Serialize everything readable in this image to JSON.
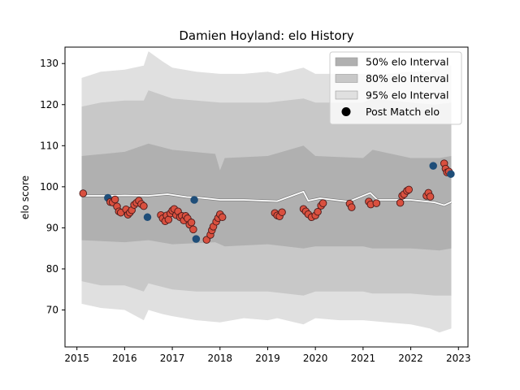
{
  "chart_data": {
    "type": "scatter",
    "title": "Damien Hoyland: elo History",
    "xlabel": "",
    "ylabel": "elo score",
    "xlim": [
      2014.75,
      2023.2
    ],
    "ylim": [
      61,
      134
    ],
    "x_ticks": [
      2015,
      2016,
      2017,
      2018,
      2019,
      2020,
      2021,
      2022,
      2023
    ],
    "y_ticks": [
      70,
      80,
      90,
      100,
      110,
      120,
      130
    ],
    "grid": false,
    "legend": {
      "placement": "top-right",
      "entries": [
        {
          "label": "50% elo Interval",
          "color": "#b0b0b0"
        },
        {
          "label": "80% elo Interval",
          "color": "#c8c8c8"
        },
        {
          "label": "95% elo Interval",
          "color": "#e0e0e0"
        },
        {
          "label": "Post Match elo",
          "color": "#000000"
        }
      ]
    },
    "colors": {
      "band50": "#b0b0b0",
      "band80": "#c8c8c8",
      "band95": "#e0e0e0",
      "mean_line": "#ffffff",
      "mean_line_shadow": "#808080",
      "win_marker": "#d9503f",
      "loss_marker": "#1f4e79",
      "marker_edge": "#4a1a1a"
    },
    "mean_line": [
      {
        "x": 2015.1,
        "y": 97.8
      },
      {
        "x": 2015.7,
        "y": 97.8
      },
      {
        "x": 2016.0,
        "y": 97.9
      },
      {
        "x": 2016.5,
        "y": 97.8
      },
      {
        "x": 2016.9,
        "y": 98.2
      },
      {
        "x": 2017.3,
        "y": 97.5
      },
      {
        "x": 2017.6,
        "y": 97.3
      },
      {
        "x": 2018.0,
        "y": 96.8
      },
      {
        "x": 2018.5,
        "y": 96.8
      },
      {
        "x": 2019.2,
        "y": 96.5
      },
      {
        "x": 2019.75,
        "y": 98.8
      },
      {
        "x": 2019.85,
        "y": 96.6
      },
      {
        "x": 2020.1,
        "y": 97.2
      },
      {
        "x": 2020.7,
        "y": 96.4
      },
      {
        "x": 2021.15,
        "y": 98.5
      },
      {
        "x": 2021.3,
        "y": 96.8
      },
      {
        "x": 2022.0,
        "y": 96.8
      },
      {
        "x": 2022.5,
        "y": 96.2
      },
      {
        "x": 2022.7,
        "y": 95.5
      },
      {
        "x": 2022.85,
        "y": 96.3
      }
    ],
    "band_95": {
      "x": [
        2015.1,
        2015.5,
        2016.0,
        2016.4,
        2016.5,
        2016.8,
        2017.0,
        2017.5,
        2018.0,
        2018.5,
        2019.0,
        2019.2,
        2019.75,
        2020.0,
        2020.5,
        2021.0,
        2021.5,
        2022.0,
        2022.4,
        2022.6,
        2022.85
      ],
      "upper": [
        126.5,
        128.0,
        128.5,
        129.5,
        133.0,
        130.5,
        129.0,
        128.0,
        127.5,
        127.5,
        128.0,
        127.5,
        129.0,
        127.5,
        127.5,
        127.5,
        127.5,
        128.0,
        128.0,
        130.0,
        129.5
      ],
      "lower": [
        71.5,
        70.5,
        70.0,
        67.5,
        70.0,
        69.0,
        68.5,
        67.5,
        67.0,
        68.0,
        67.5,
        68.0,
        66.5,
        68.0,
        67.5,
        67.5,
        67.0,
        66.5,
        65.5,
        64.5,
        65.5
      ]
    },
    "band_80": {
      "x": [
        2015.1,
        2015.5,
        2016.0,
        2016.4,
        2016.5,
        2017.0,
        2017.5,
        2018.0,
        2019.0,
        2019.75,
        2020.0,
        2021.0,
        2021.2,
        2022.0,
        2022.5,
        2022.85
      ],
      "upper": [
        119.5,
        120.5,
        121.0,
        121.0,
        123.5,
        121.5,
        121.0,
        120.5,
        120.5,
        121.5,
        120.5,
        120.5,
        121.5,
        120.5,
        120.0,
        120.5
      ],
      "lower": [
        77.0,
        76.0,
        76.0,
        74.5,
        76.5,
        75.0,
        74.5,
        74.5,
        74.5,
        73.5,
        74.5,
        74.5,
        74.0,
        74.0,
        73.5,
        73.5
      ]
    },
    "band_50": {
      "x": [
        2015.1,
        2016.0,
        2016.5,
        2017.0,
        2017.9,
        2018.0,
        2018.1,
        2019.0,
        2019.75,
        2020.0,
        2021.0,
        2021.2,
        2022.0,
        2022.6,
        2022.85
      ],
      "upper": [
        107.5,
        108.5,
        110.5,
        109.0,
        108.0,
        104.0,
        107.0,
        107.5,
        110.0,
        107.5,
        107.0,
        109.0,
        107.0,
        107.0,
        107.5
      ],
      "lower": [
        87.0,
        86.5,
        87.0,
        86.0,
        86.5,
        86.0,
        85.5,
        86.0,
        85.0,
        85.5,
        85.5,
        85.0,
        85.0,
        84.5,
        85.0
      ]
    },
    "series": [
      {
        "name": "Post Match elo",
        "points": [
          {
            "x": 2015.13,
            "y": 98.4,
            "result": "win"
          },
          {
            "x": 2015.65,
            "y": 97.3,
            "result": "loss"
          },
          {
            "x": 2015.7,
            "y": 96.3,
            "result": "win"
          },
          {
            "x": 2015.75,
            "y": 96.2,
            "result": "win"
          },
          {
            "x": 2015.8,
            "y": 96.9,
            "result": "win"
          },
          {
            "x": 2015.84,
            "y": 95.2,
            "result": "win"
          },
          {
            "x": 2015.88,
            "y": 94.0,
            "result": "win"
          },
          {
            "x": 2015.92,
            "y": 93.7,
            "result": "win"
          },
          {
            "x": 2016.03,
            "y": 94.5,
            "result": "win"
          },
          {
            "x": 2016.07,
            "y": 93.2,
            "result": "win"
          },
          {
            "x": 2016.11,
            "y": 93.7,
            "result": "win"
          },
          {
            "x": 2016.15,
            "y": 94.3,
            "result": "win"
          },
          {
            "x": 2016.2,
            "y": 95.6,
            "result": "win"
          },
          {
            "x": 2016.25,
            "y": 96.1,
            "result": "win"
          },
          {
            "x": 2016.3,
            "y": 96.6,
            "result": "win"
          },
          {
            "x": 2016.35,
            "y": 95.8,
            "result": "win"
          },
          {
            "x": 2016.4,
            "y": 95.3,
            "result": "win"
          },
          {
            "x": 2016.48,
            "y": 92.6,
            "result": "loss"
          },
          {
            "x": 2016.76,
            "y": 93.1,
            "result": "win"
          },
          {
            "x": 2016.8,
            "y": 92.3,
            "result": "win"
          },
          {
            "x": 2016.85,
            "y": 91.6,
            "result": "win"
          },
          {
            "x": 2016.88,
            "y": 93.0,
            "result": "win"
          },
          {
            "x": 2016.92,
            "y": 92.0,
            "result": "win"
          },
          {
            "x": 2016.96,
            "y": 93.5,
            "result": "win"
          },
          {
            "x": 2017.0,
            "y": 94.2,
            "result": "win"
          },
          {
            "x": 2017.04,
            "y": 94.6,
            "result": "win"
          },
          {
            "x": 2017.08,
            "y": 93.1,
            "result": "win"
          },
          {
            "x": 2017.12,
            "y": 94.0,
            "result": "win"
          },
          {
            "x": 2017.16,
            "y": 92.6,
            "result": "win"
          },
          {
            "x": 2017.2,
            "y": 92.9,
            "result": "win"
          },
          {
            "x": 2017.24,
            "y": 91.8,
            "result": "win"
          },
          {
            "x": 2017.28,
            "y": 92.9,
            "result": "win"
          },
          {
            "x": 2017.32,
            "y": 92.3,
            "result": "win"
          },
          {
            "x": 2017.36,
            "y": 90.8,
            "result": "win"
          },
          {
            "x": 2017.4,
            "y": 91.3,
            "result": "win"
          },
          {
            "x": 2017.44,
            "y": 89.6,
            "result": "win"
          },
          {
            "x": 2017.46,
            "y": 96.8,
            "result": "loss"
          },
          {
            "x": 2017.5,
            "y": 87.3,
            "result": "loss"
          },
          {
            "x": 2017.72,
            "y": 87.1,
            "result": "win"
          },
          {
            "x": 2017.8,
            "y": 88.3,
            "result": "win"
          },
          {
            "x": 2017.83,
            "y": 89.4,
            "result": "win"
          },
          {
            "x": 2017.86,
            "y": 90.3,
            "result": "win"
          },
          {
            "x": 2017.92,
            "y": 91.5,
            "result": "win"
          },
          {
            "x": 2017.96,
            "y": 92.4,
            "result": "win"
          },
          {
            "x": 2018.0,
            "y": 93.3,
            "result": "win"
          },
          {
            "x": 2018.05,
            "y": 92.6,
            "result": "win"
          },
          {
            "x": 2019.15,
            "y": 93.6,
            "result": "win"
          },
          {
            "x": 2019.2,
            "y": 93.0,
            "result": "win"
          },
          {
            "x": 2019.25,
            "y": 92.8,
            "result": "win"
          },
          {
            "x": 2019.3,
            "y": 93.8,
            "result": "win"
          },
          {
            "x": 2019.75,
            "y": 94.6,
            "result": "win"
          },
          {
            "x": 2019.8,
            "y": 94.0,
            "result": "win"
          },
          {
            "x": 2019.85,
            "y": 93.3,
            "result": "win"
          },
          {
            "x": 2019.92,
            "y": 92.6,
            "result": "win"
          },
          {
            "x": 2020.0,
            "y": 93.0,
            "result": "win"
          },
          {
            "x": 2020.05,
            "y": 93.9,
            "result": "win"
          },
          {
            "x": 2020.12,
            "y": 95.4,
            "result": "win"
          },
          {
            "x": 2020.16,
            "y": 96.0,
            "result": "win"
          },
          {
            "x": 2020.72,
            "y": 95.9,
            "result": "win"
          },
          {
            "x": 2020.76,
            "y": 95.0,
            "result": "win"
          },
          {
            "x": 2021.12,
            "y": 96.4,
            "result": "win"
          },
          {
            "x": 2021.16,
            "y": 95.7,
            "result": "win"
          },
          {
            "x": 2021.28,
            "y": 96.0,
            "result": "win"
          },
          {
            "x": 2021.78,
            "y": 96.1,
            "result": "win"
          },
          {
            "x": 2021.82,
            "y": 97.8,
            "result": "win"
          },
          {
            "x": 2021.86,
            "y": 98.2,
            "result": "win"
          },
          {
            "x": 2021.92,
            "y": 99.0,
            "result": "win"
          },
          {
            "x": 2021.96,
            "y": 99.3,
            "result": "win"
          },
          {
            "x": 2022.33,
            "y": 97.8,
            "result": "win"
          },
          {
            "x": 2022.37,
            "y": 98.5,
            "result": "win"
          },
          {
            "x": 2022.41,
            "y": 97.6,
            "result": "win"
          },
          {
            "x": 2022.47,
            "y": 105.1,
            "result": "loss"
          },
          {
            "x": 2022.7,
            "y": 105.7,
            "result": "win"
          },
          {
            "x": 2022.73,
            "y": 104.4,
            "result": "win"
          },
          {
            "x": 2022.76,
            "y": 103.5,
            "result": "win"
          },
          {
            "x": 2022.8,
            "y": 103.7,
            "result": "win"
          },
          {
            "x": 2022.84,
            "y": 103.1,
            "result": "loss"
          }
        ]
      }
    ]
  }
}
